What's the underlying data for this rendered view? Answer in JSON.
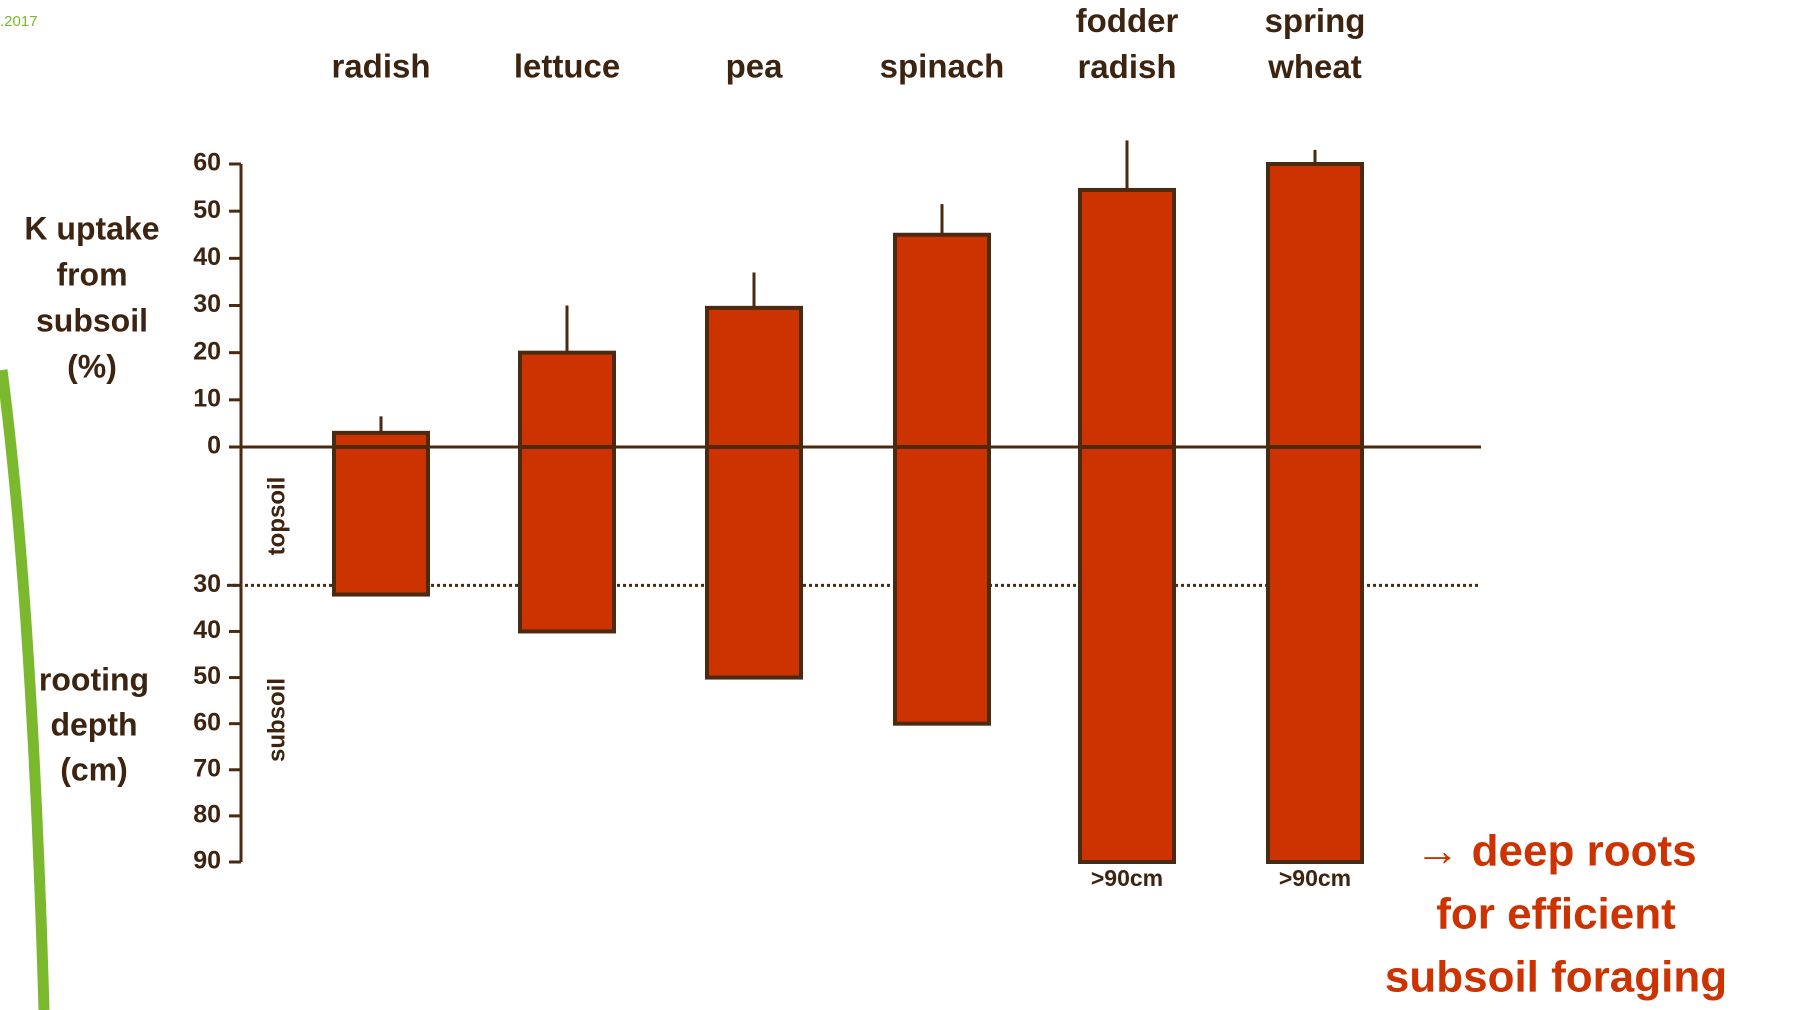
{
  "chart_data": {
    "type": "bar",
    "source": ".2017",
    "categories": [
      "radish",
      "lettuce",
      "pea",
      "spinach",
      "fodder radish",
      "spring wheat"
    ],
    "ylabel": [
      "K uptake",
      "from",
      "subsoil",
      "(%)"
    ],
    "y2label": [
      "rooting",
      "depth",
      "(cm)"
    ],
    "ylim": [
      0,
      60
    ],
    "yticks": [
      0,
      10,
      20,
      30,
      40,
      50,
      60
    ],
    "y2lim": [
      0,
      90
    ],
    "y2ticks": [
      30,
      40,
      50,
      60,
      70,
      80,
      90
    ],
    "divider": 30,
    "zones": [
      "topsoil",
      "subsoil"
    ],
    "series": [
      {
        "color": "#cc3300",
        "axis": "y",
        "values": [
          3,
          20,
          29.5,
          45,
          54.5,
          60
        ],
        "errors": [
          3.5,
          10,
          7.5,
          6.5,
          10.5,
          3
        ]
      },
      {
        "color": "#cc3300",
        "axis": "y2",
        "values": [
          32,
          40,
          50,
          60,
          90,
          90
        ],
        "value_labels": [
          null,
          null,
          null,
          null,
          ">90cm",
          ">90cm"
        ]
      }
    ],
    "annotation": [
      "→ deep roots",
      "for efficient",
      "subsoil foraging"
    ]
  }
}
